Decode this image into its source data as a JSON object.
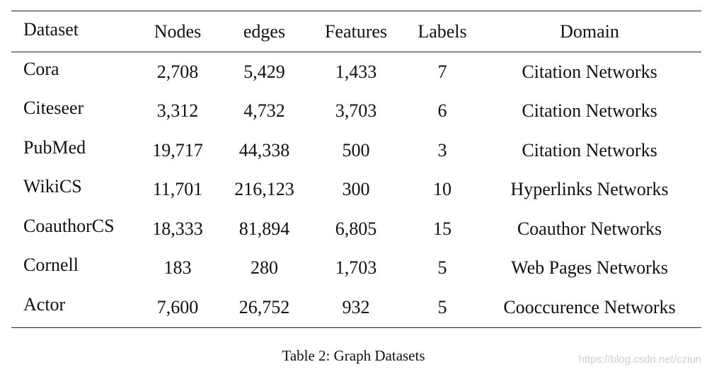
{
  "table": {
    "columns": [
      "Dataset",
      "Nodes",
      "edges",
      "Features",
      "Labels",
      "Domain"
    ],
    "rows": [
      [
        "Cora",
        "2,708",
        "5,429",
        "1,433",
        "7",
        "Citation Networks"
      ],
      [
        "Citeseer",
        "3,312",
        "4,732",
        "3,703",
        "6",
        "Citation Networks"
      ],
      [
        "PubMed",
        "19,717",
        "44,338",
        "500",
        "3",
        "Citation Networks"
      ],
      [
        "WikiCS",
        "11,701",
        "216,123",
        "300",
        "10",
        "Hyperlinks Networks"
      ],
      [
        "CoauthorCS",
        "18,333",
        "81,894",
        "6,805",
        "15",
        "Coauthor Networks"
      ],
      [
        "Cornell",
        "183",
        "280",
        "1,703",
        "5",
        "Web Pages Networks"
      ],
      [
        "Actor",
        "7,600",
        "26,752",
        "932",
        "5",
        "Cooccurence Networks"
      ]
    ]
  },
  "caption": "Table 2: Graph Datasets",
  "watermark": "https://blog.csdn.net/cziun"
}
